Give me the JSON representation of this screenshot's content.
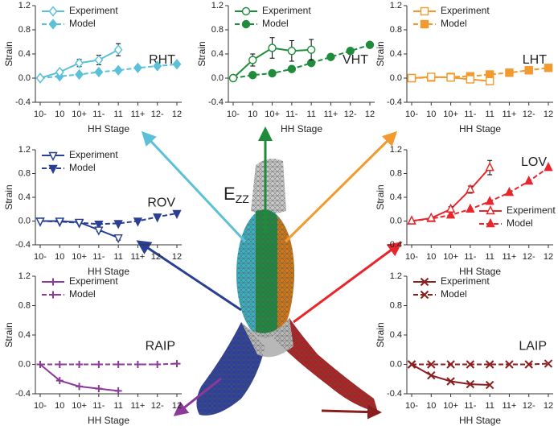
{
  "chart_data": [
    {
      "type": "line",
      "title": "RHT",
      "color": "#5bc0d8",
      "marker": "diamond",
      "legend": "upper left",
      "label_position": "lower right",
      "xlabel": "HH Stage",
      "ylabel": "Strain",
      "categories": [
        "10-",
        "10",
        "10+",
        "11-",
        "11",
        "11+",
        "12-",
        "12"
      ],
      "ylim": [
        -0.4,
        1.2
      ],
      "yticks": [
        -0.4,
        {
          "value": 0,
          "label": "0.0"
        },
        0.4,
        0.8,
        1.2
      ],
      "series": [
        {
          "name": "Experiment",
          "filled": false,
          "dashed": false,
          "values": [
            0,
            0.1,
            0.25,
            0.3,
            0.47,
            null,
            null,
            null
          ],
          "errors": [
            0,
            0.03,
            0.06,
            0.08,
            0.1,
            null,
            null,
            null
          ]
        },
        {
          "name": "Model",
          "filled": true,
          "dashed": true,
          "values": [
            0,
            0.03,
            0.06,
            0.1,
            0.13,
            0.17,
            0.2,
            0.23
          ]
        }
      ]
    },
    {
      "type": "line",
      "title": "VHT",
      "color": "#1f8c3b",
      "marker": "circle",
      "legend": "upper left",
      "label_position": "lower right",
      "xlabel": "HH Stage",
      "ylabel": "Strain",
      "categories": [
        "10-",
        "10",
        "10+",
        "11-",
        "11",
        "11+",
        "12-",
        "12"
      ],
      "ylim": [
        -0.4,
        1.2
      ],
      "yticks": [
        -0.4,
        {
          "value": 0,
          "label": "0.0"
        },
        0.4,
        0.8,
        1.2
      ],
      "series": [
        {
          "name": "Experiment",
          "filled": false,
          "dashed": false,
          "values": [
            0,
            0.3,
            0.5,
            0.45,
            0.47,
            null,
            null,
            null
          ],
          "errors": [
            0,
            0.1,
            0.17,
            0.17,
            0.17,
            null,
            null,
            null
          ]
        },
        {
          "name": "Model",
          "filled": true,
          "dashed": true,
          "values": [
            0,
            0.05,
            0.08,
            0.15,
            0.25,
            0.35,
            0.45,
            0.55
          ]
        }
      ]
    },
    {
      "type": "line",
      "title": "LHT",
      "color": "#f29a2e",
      "marker": "square",
      "legend": "upper left",
      "label_position": "lower right",
      "xlabel": "HH Stage",
      "ylabel": "Strain",
      "categories": [
        "10-",
        "10",
        "10+",
        "11-",
        "11",
        "11+",
        "12-",
        "12"
      ],
      "ylim": [
        -0.4,
        1.2
      ],
      "yticks": [
        -0.4,
        {
          "value": 0,
          "label": "0.0"
        },
        0.4,
        0.8,
        1.2
      ],
      "series": [
        {
          "name": "Experiment",
          "filled": false,
          "dashed": false,
          "values": [
            0,
            0.02,
            0.01,
            -0.02,
            -0.05,
            null,
            null,
            null
          ],
          "errors": [
            0,
            0.02,
            0.03,
            0.04,
            0.05,
            null,
            null,
            null
          ]
        },
        {
          "name": "Model",
          "filled": true,
          "dashed": true,
          "values": [
            0,
            0.01,
            0.02,
            0.03,
            0.06,
            0.09,
            0.13,
            0.17
          ]
        }
      ]
    },
    {
      "type": "line",
      "title": "ROV",
      "color": "#2a3f94",
      "marker": "triangle-down",
      "legend": "upper left",
      "label_position": "lower right",
      "xlabel": "HH Stage",
      "ylabel": "Strain",
      "categories": [
        "10-",
        "10",
        "10+",
        "11-",
        "11",
        "11+",
        "12-",
        "12"
      ],
      "ylim": [
        -0.4,
        1.2
      ],
      "yticks": [
        -0.4,
        {
          "value": 0,
          "label": "0.0"
        },
        0.4,
        0.8,
        1.2
      ],
      "series": [
        {
          "name": "Experiment",
          "filled": false,
          "dashed": false,
          "values": [
            0,
            0,
            -0.02,
            -0.15,
            -0.28,
            null,
            null,
            null
          ],
          "errors": [
            0,
            0.01,
            0.02,
            0.03,
            0.04,
            null,
            null,
            null
          ]
        },
        {
          "name": "Model",
          "filled": true,
          "dashed": true,
          "values": [
            0,
            -0.01,
            -0.03,
            -0.05,
            -0.04,
            0,
            0.07,
            0.13
          ]
        }
      ]
    },
    {
      "type": "line",
      "title": "LOV",
      "color": "#e8262b",
      "marker": "triangle-up",
      "legend": "lower right",
      "label_position": "upper right",
      "xlabel": "HH Stage",
      "ylabel": "Strain",
      "categories": [
        "10-",
        "10",
        "10+",
        "11-",
        "11",
        "11+",
        "12-",
        "12"
      ],
      "ylim": [
        -0.4,
        1.2
      ],
      "yticks": [
        -0.4,
        {
          "value": 0,
          "label": "0.0"
        },
        0.4,
        0.8,
        1.2
      ],
      "series": [
        {
          "name": "Experiment",
          "filled": false,
          "dashed": false,
          "values": [
            0,
            0.05,
            0.2,
            0.53,
            0.9,
            null,
            null,
            null
          ],
          "errors": [
            0,
            0.02,
            0.04,
            0.06,
            0.12,
            null,
            null,
            null
          ]
        },
        {
          "name": "Model",
          "filled": true,
          "dashed": true,
          "values": [
            0,
            0.04,
            0.1,
            0.2,
            0.33,
            0.48,
            0.67,
            0.9
          ]
        }
      ]
    },
    {
      "type": "line",
      "title": "RAIP",
      "color": "#8b3a9a",
      "marker": "plus",
      "legend": "upper left",
      "label_position": "lower right",
      "xlabel": "HH Stage",
      "ylabel": "Strain",
      "categories": [
        "10-",
        "10",
        "10+",
        "11-",
        "11",
        "11+",
        "12-",
        "12"
      ],
      "ylim": [
        -0.4,
        1.2
      ],
      "yticks": [
        -0.4,
        {
          "value": 0,
          "label": "0.0"
        },
        0.4,
        0.8,
        1.2
      ],
      "series": [
        {
          "name": "Experiment",
          "filled": false,
          "dashed": false,
          "values": [
            0,
            -0.22,
            -0.3,
            -0.33,
            -0.36,
            null,
            null,
            null
          ]
        },
        {
          "name": "Model",
          "filled": true,
          "dashed": true,
          "values": [
            0,
            0,
            0,
            0,
            0,
            0,
            0,
            0.01
          ]
        }
      ]
    },
    {
      "type": "line",
      "title": "LAIP",
      "color": "#8b1d1d",
      "marker": "x",
      "legend": "upper left",
      "label_position": "lower right",
      "xlabel": "HH Stage",
      "ylabel": "Strain",
      "categories": [
        "10-",
        "10",
        "10+",
        "11-",
        "11",
        "11+",
        "12-",
        "12"
      ],
      "ylim": [
        -0.4,
        1.2
      ],
      "yticks": [
        -0.4,
        {
          "value": 0,
          "label": "0.0"
        },
        0.4,
        0.8,
        1.2
      ],
      "series": [
        {
          "name": "Experiment",
          "filled": false,
          "dashed": false,
          "values": [
            0,
            -0.15,
            -0.23,
            -0.27,
            -0.28,
            null,
            null,
            null
          ]
        },
        {
          "name": "Model",
          "filled": true,
          "dashed": true,
          "values": [
            0,
            0,
            0,
            0,
            0,
            0,
            0,
            0.01
          ]
        }
      ]
    }
  ],
  "center_label": {
    "main": "E",
    "sub": "ZZ"
  }
}
